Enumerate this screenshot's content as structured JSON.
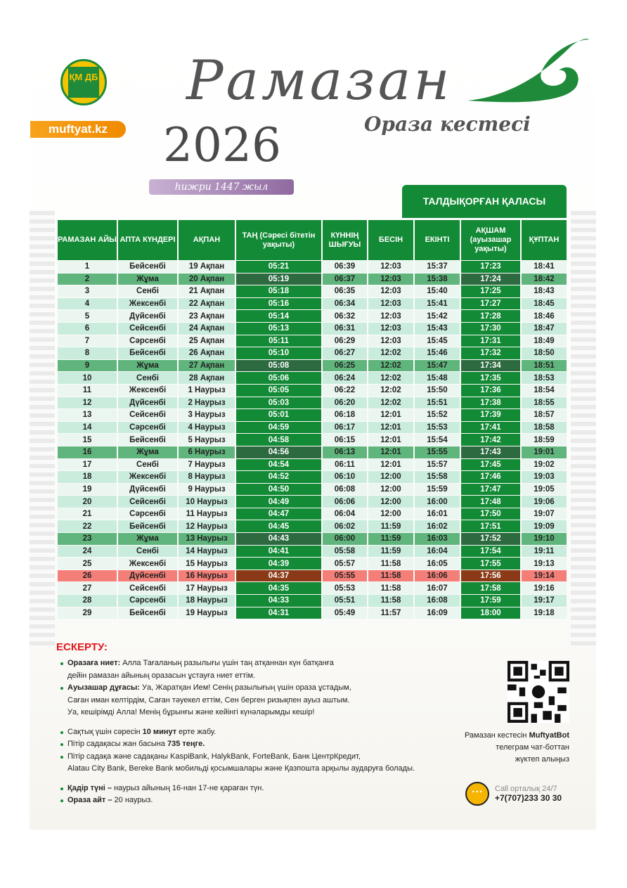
{
  "header": {
    "logo_text": "ҚМ ДБ",
    "site": "muftyat.kz",
    "title": "Рамазан",
    "year": "2026",
    "subtitle": "Ораза кестесі",
    "hijri": "һижри 1447 жыл",
    "city": "ТАЛДЫҚОРҒАН ҚАЛАСЫ"
  },
  "colors": {
    "green": "#138a36",
    "friday": "#5fb57c",
    "qadr": "#f47f78",
    "accent_red": "#e3151b",
    "orange": "#f7a21b"
  },
  "table": {
    "columns": [
      "РАМАЗАН АЙЫ",
      "АПТА КҮНДЕРІ",
      "АҚПАН",
      "ТАҢ (Сәресі бітетін уақыты)",
      "КҮННІҢ ШЫҒУЫ",
      "БЕСІН",
      "ЕКІНТІ",
      "АҚШАМ (ауызашар уақыты)",
      "ҚҰПТАН"
    ],
    "rows": [
      [
        "1",
        "Бейсенбі",
        "19 Ақпан",
        "05:21",
        "06:39",
        "12:03",
        "15:37",
        "17:23",
        "18:41"
      ],
      [
        "2",
        "Жұма",
        "20 Ақпан",
        "05:19",
        "06:37",
        "12:03",
        "15:38",
        "17:24",
        "18:42"
      ],
      [
        "3",
        "Сенбі",
        "21 Ақпан",
        "05:18",
        "06:35",
        "12:03",
        "15:40",
        "17:25",
        "18:43"
      ],
      [
        "4",
        "Жексенбі",
        "22 Ақпан",
        "05:16",
        "06:34",
        "12:03",
        "15:41",
        "17:27",
        "18:45"
      ],
      [
        "5",
        "Дүйсенбі",
        "23 Ақпан",
        "05:14",
        "06:32",
        "12:03",
        "15:42",
        "17:28",
        "18:46"
      ],
      [
        "6",
        "Сейсенбі",
        "24 Ақпан",
        "05:13",
        "06:31",
        "12:03",
        "15:43",
        "17:30",
        "18:47"
      ],
      [
        "7",
        "Сәрсенбі",
        "25 Ақпан",
        "05:11",
        "06:29",
        "12:03",
        "15:45",
        "17:31",
        "18:49"
      ],
      [
        "8",
        "Бейсенбі",
        "26 Ақпан",
        "05:10",
        "06:27",
        "12:02",
        "15:46",
        "17:32",
        "18:50"
      ],
      [
        "9",
        "Жұма",
        "27 Ақпан",
        "05:08",
        "06:25",
        "12:02",
        "15:47",
        "17:34",
        "18:51"
      ],
      [
        "10",
        "Сенбі",
        "28 Ақпан",
        "05:06",
        "06:24",
        "12:02",
        "15:48",
        "17:35",
        "18:53"
      ],
      [
        "11",
        "Жексенбі",
        "1 Наурыз",
        "05:05",
        "06:22",
        "12:02",
        "15:50",
        "17:36",
        "18:54"
      ],
      [
        "12",
        "Дүйсенбі",
        "2 Наурыз",
        "05:03",
        "06:20",
        "12:02",
        "15:51",
        "17:38",
        "18:55"
      ],
      [
        "13",
        "Сейсенбі",
        "3 Наурыз",
        "05:01",
        "06:18",
        "12:01",
        "15:52",
        "17:39",
        "18:57"
      ],
      [
        "14",
        "Сәрсенбі",
        "4 Наурыз",
        "04:59",
        "06:17",
        "12:01",
        "15:53",
        "17:41",
        "18:58"
      ],
      [
        "15",
        "Бейсенбі",
        "5 Наурыз",
        "04:58",
        "06:15",
        "12:01",
        "15:54",
        "17:42",
        "18:59"
      ],
      [
        "16",
        "Жұма",
        "6 Наурыз",
        "04:56",
        "06:13",
        "12:01",
        "15:55",
        "17:43",
        "19:01"
      ],
      [
        "17",
        "Сенбі",
        "7 Наурыз",
        "04:54",
        "06:11",
        "12:01",
        "15:57",
        "17:45",
        "19:02"
      ],
      [
        "18",
        "Жексенбі",
        "8 Наурыз",
        "04:52",
        "06:10",
        "12:00",
        "15:58",
        "17:46",
        "19:03"
      ],
      [
        "19",
        "Дүйсенбі",
        "9 Наурыз",
        "04:50",
        "06:08",
        "12:00",
        "15:59",
        "17:47",
        "19:05"
      ],
      [
        "20",
        "Сейсенбі",
        "10 Наурыз",
        "04:49",
        "06:06",
        "12:00",
        "16:00",
        "17:48",
        "19:06"
      ],
      [
        "21",
        "Сәрсенбі",
        "11 Наурыз",
        "04:47",
        "06:04",
        "12:00",
        "16:01",
        "17:50",
        "19:07"
      ],
      [
        "22",
        "Бейсенбі",
        "12 Наурыз",
        "04:45",
        "06:02",
        "11:59",
        "16:02",
        "17:51",
        "19:09"
      ],
      [
        "23",
        "Жұма",
        "13 Наурыз",
        "04:43",
        "06:00",
        "11:59",
        "16:03",
        "17:52",
        "19:10"
      ],
      [
        "24",
        "Сенбі",
        "14 Наурыз",
        "04:41",
        "05:58",
        "11:59",
        "16:04",
        "17:54",
        "19:11"
      ],
      [
        "25",
        "Жексенбі",
        "15 Наурыз",
        "04:39",
        "05:57",
        "11:58",
        "16:05",
        "17:55",
        "19:13"
      ],
      [
        "26",
        "Дүйсенбі",
        "16 Наурыз",
        "04:37",
        "05:55",
        "11:58",
        "16:06",
        "17:56",
        "19:14"
      ],
      [
        "27",
        "Сейсенбі",
        "17 Наурыз",
        "04:35",
        "05:53",
        "11:58",
        "16:07",
        "17:58",
        "19:16"
      ],
      [
        "28",
        "Сәрсенбі",
        "18 Наурыз",
        "04:33",
        "05:51",
        "11:58",
        "16:08",
        "17:59",
        "19:17"
      ],
      [
        "29",
        "Бейсенбі",
        "19 Наурыз",
        "04:31",
        "05:49",
        "11:57",
        "16:09",
        "18:00",
        "19:18"
      ]
    ]
  },
  "notes": {
    "title": "ЕСКЕРТУ:",
    "items": [
      {
        "bold": "Оразаға ниет:",
        "text": " Алла Тағаланың разылығы үшін таң атқаннан күн батқанға",
        "cont": "дейін рамазан айының оразасын ұстауға ниет еттім."
      },
      {
        "bold": "Ауызашар дұғасы:",
        "text": " Уа, Жаратқан Ием! Сенің разылығың үшін ораза ұстадым,",
        "cont": "Саған иман келтірдім, Саған тәуекел еттім, Сен берген ризықпен ауыз аштым.",
        "cont2": "Уа, кешірімді Алла! Менің бұрынғы және кейінгі күнәларымды кешір!"
      },
      {
        "pre": "Сақтық үшін сәресін ",
        "bold": "10 минут",
        "text": " ерте жабу."
      },
      {
        "pre": "Пітір садақасы жан басына ",
        "bold": "735 теңге."
      },
      {
        "pre": "Пітір садақа және садақаны KaspiBank, HalykBank, ForteBank, Банк ЦентрКредит,",
        "cont": "Alatau City Bank, Bereke Bank мобильді қосымшалары және Қазпошта арқылы аударуға болады."
      },
      {
        "bold": "Қадір түні –",
        "text": " наурыз айының 16-нан 17-не қараған түн."
      },
      {
        "bold": "Ораза айт –",
        "text": " 20 наурыз."
      }
    ]
  },
  "bot": {
    "line1_pre": "Рамазан кестесін ",
    "line1_bold": "MuftyatBot",
    "line2": "телеграм чат-боттан",
    "line3": "жүктеп алыңыз"
  },
  "call": {
    "label": "Call орталық 24/7",
    "phone": "+7(707)233 30 30"
  }
}
